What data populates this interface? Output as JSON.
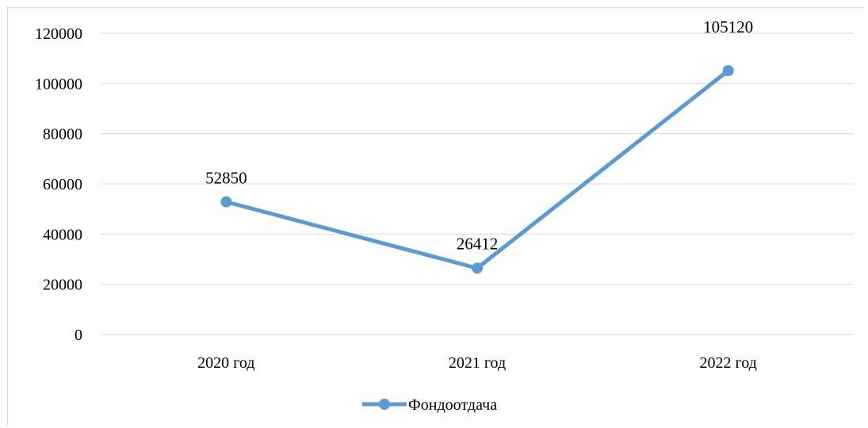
{
  "chart_data": {
    "type": "line",
    "categories": [
      "2020 год",
      "2021 год",
      "2022 год"
    ],
    "series": [
      {
        "name": "Фондоотдача",
        "values": [
          52850,
          26412,
          105120
        ]
      }
    ],
    "data_labels": [
      "52850",
      "26412",
      "105120"
    ],
    "y_ticks": [
      "0",
      "20000",
      "40000",
      "60000",
      "80000",
      "100000",
      "120000"
    ],
    "ylim": [
      0,
      120000
    ],
    "grid": true,
    "legend": "bottom",
    "colors": {
      "series": "#5b9bd5",
      "grid": "#d9d9d9"
    }
  }
}
